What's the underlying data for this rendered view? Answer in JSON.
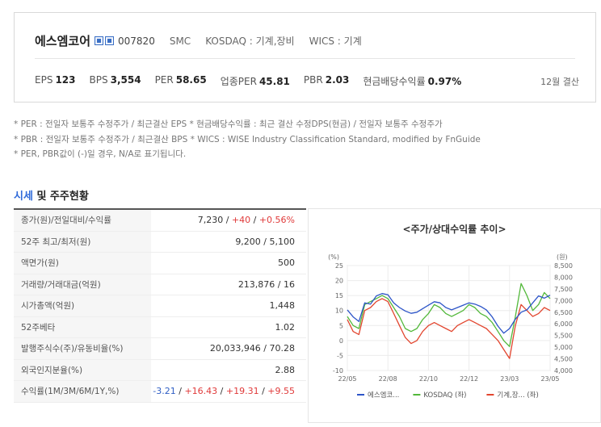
{
  "header": {
    "stock_name": "에스엠코어",
    "icons": [
      "kospi-icon",
      "kosdaq-icon"
    ],
    "code": "007820",
    "group": "SMC",
    "market": "KOSDAQ : 기계,장비",
    "wics": "WICS : 기계"
  },
  "metrics": [
    {
      "label": "EPS",
      "value": "123"
    },
    {
      "label": "BPS",
      "value": "3,554"
    },
    {
      "label": "PER",
      "value": "58.65"
    },
    {
      "label": "업종PER",
      "value": "45.81"
    },
    {
      "label": "PBR",
      "value": "2.03"
    },
    {
      "label": "현금배당수익률",
      "value": "0.97%"
    }
  ],
  "settlement": "12월 결산",
  "notes": [
    "* PER : 전일자 보통주 수정주가 / 최근결산 EPS * 현금배당수익률 : 최근 결산 수정DPS(현금) / 전일자 보통주 수정주가",
    "* PBR : 전일자 보통주 수정주가 / 최근결산 BPS * WICS : WISE Industry Classification Standard, modified by FnGuide",
    "* PER, PBR값이 (-)일 경우, N/A로 표기됩니다."
  ],
  "section": {
    "accent": "시세",
    "rest": " 및 주주현황"
  },
  "table": {
    "rows": [
      {
        "label": "종가(원)/전일대비/수익률",
        "parts": [
          {
            "t": "7,230",
            "c": ""
          },
          {
            "t": " / ",
            "c": ""
          },
          {
            "t": "+40",
            "c": "up"
          },
          {
            "t": " / ",
            "c": ""
          },
          {
            "t": "+0.56%",
            "c": "up"
          }
        ]
      },
      {
        "label": "52주 최고/최저(원)",
        "parts": [
          {
            "t": "9,200 / 5,100",
            "c": ""
          }
        ]
      },
      {
        "label": "액면가(원)",
        "parts": [
          {
            "t": "500",
            "c": ""
          }
        ]
      },
      {
        "label": "거래량/거래대금(억원)",
        "parts": [
          {
            "t": "213,876 / 16",
            "c": ""
          }
        ]
      },
      {
        "label": "시가총액(억원)",
        "parts": [
          {
            "t": "1,448",
            "c": ""
          }
        ]
      },
      {
        "label": "52주베타",
        "parts": [
          {
            "t": "1.02",
            "c": ""
          }
        ]
      },
      {
        "label": "발행주식수(주)/유동비율(%)",
        "parts": [
          {
            "t": "20,033,946 / 70.28",
            "c": ""
          }
        ]
      },
      {
        "label": "외국인지분율(%)",
        "parts": [
          {
            "t": "2.88",
            "c": ""
          }
        ]
      },
      {
        "label": "수익률(1M/3M/6M/1Y,%)",
        "parts": [
          {
            "t": "-3.21",
            "c": "down"
          },
          {
            "t": " / ",
            "c": ""
          },
          {
            "t": "+16.43",
            "c": "up"
          },
          {
            "t": " / ",
            "c": ""
          },
          {
            "t": "+19.31",
            "c": "up"
          },
          {
            "t": " / ",
            "c": ""
          },
          {
            "t": "+9.55",
            "c": "up"
          }
        ]
      }
    ]
  },
  "chart_title": "<주가/상대수익률 추이>",
  "chart_data": {
    "type": "line",
    "left_unit": "(%)",
    "right_unit": "(원)",
    "left_ylim": [
      -10,
      25
    ],
    "left_ticks": [
      "25",
      "20",
      "15",
      "10",
      "5",
      "0",
      "-5",
      "-10"
    ],
    "right_ylim": [
      4000,
      8500
    ],
    "right_ticks": [
      "8,500",
      "8,000",
      "7,500",
      "7,000",
      "6,500",
      "6,000",
      "5,500",
      "5,000",
      "4,500",
      "4,000"
    ],
    "x_ticks": [
      "22/05",
      "22/08",
      "22/10",
      "22/12",
      "23/03",
      "23/05"
    ],
    "grid": true,
    "legend_position": "bottom",
    "series": [
      {
        "name": "에스엠코...",
        "axis": "right",
        "color": "#2d55c8",
        "values": [
          6600,
          6300,
          6100,
          6900,
          6850,
          7200,
          7300,
          7250,
          6900,
          6700,
          6550,
          6450,
          6500,
          6650,
          6800,
          6950,
          6900,
          6700,
          6600,
          6700,
          6800,
          6900,
          6850,
          6750,
          6600,
          6300,
          5900,
          5600,
          5800,
          6200,
          6500,
          6600,
          6900,
          7200,
          7100,
          7230
        ]
      },
      {
        "name": "KOSDAQ (좌)",
        "axis": "left",
        "color": "#52b83a",
        "values": [
          8,
          5,
          4,
          12,
          13,
          14,
          15,
          14,
          11,
          8,
          4,
          3,
          4,
          7,
          9,
          12,
          11,
          9,
          8,
          9,
          10,
          12,
          11,
          9,
          8,
          6,
          3,
          0,
          -2,
          8,
          19,
          15,
          10,
          12,
          16,
          14
        ]
      },
      {
        "name": "기계,장... (좌)",
        "axis": "left",
        "color": "#e2452e",
        "values": [
          7,
          3,
          2,
          10,
          11,
          13,
          14,
          13,
          9,
          5,
          1,
          -1,
          0,
          3,
          5,
          6,
          5,
          4,
          3,
          5,
          6,
          7,
          6,
          5,
          4,
          2,
          0,
          -3,
          -6,
          5,
          12,
          10,
          8,
          9,
          11,
          10
        ]
      }
    ]
  }
}
